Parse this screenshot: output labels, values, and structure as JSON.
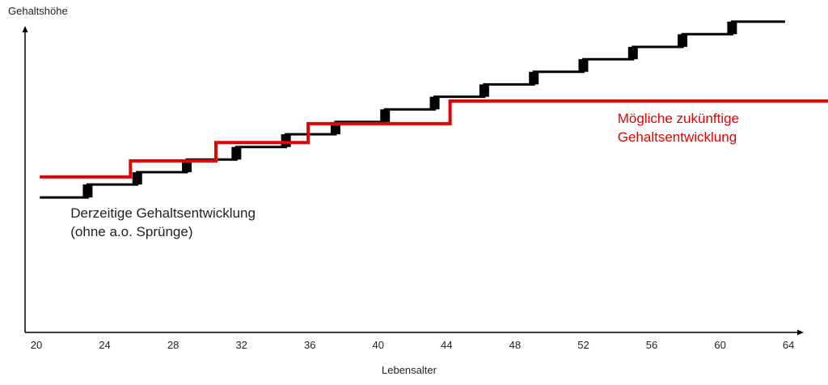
{
  "chart_data": {
    "type": "line",
    "xlabel": "Lebensalter",
    "ylabel": "Gehaltshöhe",
    "xlim": [
      20,
      66.5
    ],
    "x_ticks": [
      20,
      24,
      28,
      32,
      36,
      40,
      44,
      48,
      52,
      56,
      60,
      64
    ],
    "y_scale": "unlabeled (relative salary level 0–100)",
    "ylim": [
      0,
      100
    ],
    "grid": false,
    "series": [
      {
        "color": "#000000",
        "step": true,
        "points": [
          [
            20.2,
            40.6
          ],
          [
            23.0,
            40.6
          ],
          [
            23.0,
            44.5
          ],
          [
            25.9,
            44.5
          ],
          [
            25.9,
            48.2
          ],
          [
            28.8,
            48.2
          ],
          [
            28.8,
            52.0
          ],
          [
            31.7,
            52.0
          ],
          [
            31.7,
            55.8
          ],
          [
            34.6,
            55.8
          ],
          [
            34.6,
            59.6
          ],
          [
            37.5,
            59.6
          ],
          [
            37.5,
            63.3
          ],
          [
            40.4,
            63.3
          ],
          [
            40.4,
            67.1
          ],
          [
            43.3,
            67.1
          ],
          [
            43.3,
            70.9
          ],
          [
            46.2,
            70.9
          ],
          [
            46.2,
            74.6
          ],
          [
            49.1,
            74.6
          ],
          [
            49.1,
            78.4
          ],
          [
            52.0,
            78.4
          ],
          [
            52.0,
            82.2
          ],
          [
            54.9,
            82.2
          ],
          [
            54.9,
            85.9
          ],
          [
            57.8,
            85.9
          ],
          [
            57.8,
            89.7
          ],
          [
            60.7,
            89.7
          ],
          [
            60.7,
            93.5
          ],
          [
            63.8,
            93.5
          ]
        ]
      },
      {
        "color": "#e60000",
        "step": true,
        "points": [
          [
            20.2,
            46.8
          ],
          [
            25.5,
            46.8
          ],
          [
            25.5,
            51.6
          ],
          [
            30.5,
            51.6
          ],
          [
            30.5,
            57.1
          ],
          [
            35.9,
            57.1
          ],
          [
            35.9,
            62.8
          ],
          [
            44.2,
            62.8
          ],
          [
            44.2,
            69.6
          ],
          [
            66.5,
            69.6
          ]
        ]
      }
    ],
    "annotations": [
      {
        "lines": [
          "Derzeitige Gehaltsentwicklung",
          "(ohne a.o. Sprünge)"
        ],
        "color": "#222222",
        "x": 22.0,
        "y": 34.5
      },
      {
        "lines": [
          "Mögliche zukünftige",
          "Gehaltsentwicklung"
        ],
        "color": "#e60000",
        "x": 54.0,
        "y": 63.0
      }
    ]
  }
}
